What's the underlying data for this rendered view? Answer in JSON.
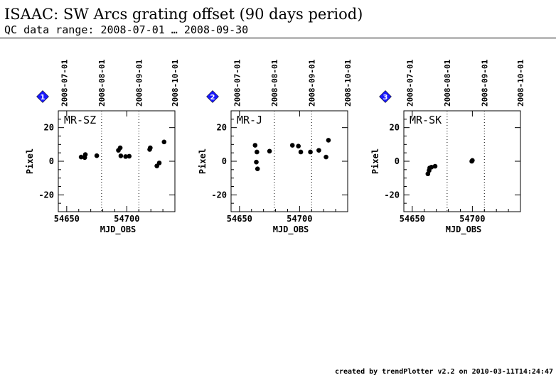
{
  "header": {
    "title": "ISAAC: SW Arcs grating offset (90 days period)",
    "subtitle": "QC data range: 2008-07-01 … 2008-09-30"
  },
  "footer": {
    "credit": "created by trendPlotter v2.2 on 2010-03-11T14:24:47"
  },
  "colors": {
    "marker_badge": "#1a1aff",
    "points": "#000000",
    "axes": "#000000"
  },
  "chart_data": [
    {
      "type": "scatter",
      "label": "MR-SZ",
      "marker": "1",
      "xlabel": "MJD_OBS",
      "ylabel": "Pixel",
      "xlim": [
        54643,
        54740
      ],
      "ylim": [
        -30,
        30
      ],
      "xticks": [
        54650,
        54700
      ],
      "yticks": [
        -20,
        0,
        20
      ],
      "top_dates": [
        "2008-07-01",
        "2008-08-01",
        "2008-09-01",
        "2008-10-01"
      ],
      "top_date_mjd": [
        54648,
        54679,
        54710,
        54740
      ],
      "vlines_mjd": [
        54679,
        54710
      ],
      "points": [
        [
          54662,
          2.5
        ],
        [
          54665,
          2.2
        ],
        [
          54665.5,
          4.0
        ],
        [
          54675,
          3.3
        ],
        [
          54693,
          6.5
        ],
        [
          54694.5,
          8.0
        ],
        [
          54695,
          3.2
        ],
        [
          54699,
          2.8
        ],
        [
          54702,
          3.0
        ],
        [
          54719,
          7.0
        ],
        [
          54719.5,
          8.0
        ],
        [
          54725,
          -2.8
        ],
        [
          54727,
          -1.0
        ],
        [
          54731,
          11.5
        ]
      ]
    },
    {
      "type": "scatter",
      "label": "MR-J",
      "marker": "2",
      "xlabel": "MJD_OBS",
      "ylabel": "Pixel",
      "xlim": [
        54643,
        54740
      ],
      "ylim": [
        -30,
        30
      ],
      "xticks": [
        54650,
        54700
      ],
      "yticks": [
        -20,
        0,
        20
      ],
      "top_dates": [
        "2008-07-01",
        "2008-08-01",
        "2008-09-01",
        "2008-10-01"
      ],
      "top_date_mjd": [
        54648,
        54679,
        54710,
        54740
      ],
      "vlines_mjd": [
        54679,
        54710
      ],
      "points": [
        [
          54663,
          9.5
        ],
        [
          54664.5,
          5.5
        ],
        [
          54664,
          -0.5
        ],
        [
          54665,
          -4.5
        ],
        [
          54675,
          6.0
        ],
        [
          54694,
          9.5
        ],
        [
          54699,
          9.0
        ],
        [
          54701,
          5.5
        ],
        [
          54709,
          5.5
        ],
        [
          54716,
          6.5
        ],
        [
          54722,
          2.5
        ],
        [
          54724,
          12.5
        ]
      ]
    },
    {
      "type": "scatter",
      "label": "MR-SK",
      "marker": "3",
      "xlabel": "MJD_OBS",
      "ylabel": "Pixel",
      "xlim": [
        54643,
        54740
      ],
      "ylim": [
        -30,
        30
      ],
      "xticks": [
        54650,
        54700
      ],
      "yticks": [
        -20,
        0,
        20
      ],
      "top_dates": [
        "2008-07-01",
        "2008-08-01",
        "2008-09-01",
        "2008-10-01"
      ],
      "top_date_mjd": [
        54648,
        54679,
        54710,
        54740
      ],
      "vlines_mjd": [
        54679,
        54710
      ],
      "points": [
        [
          54663,
          -7.5
        ],
        [
          54664,
          -5.5
        ],
        [
          54664.5,
          -4.0
        ],
        [
          54666,
          -3.5
        ],
        [
          54669,
          -3.0
        ],
        [
          54699.5,
          0.0
        ],
        [
          54700,
          0.5
        ]
      ]
    }
  ]
}
